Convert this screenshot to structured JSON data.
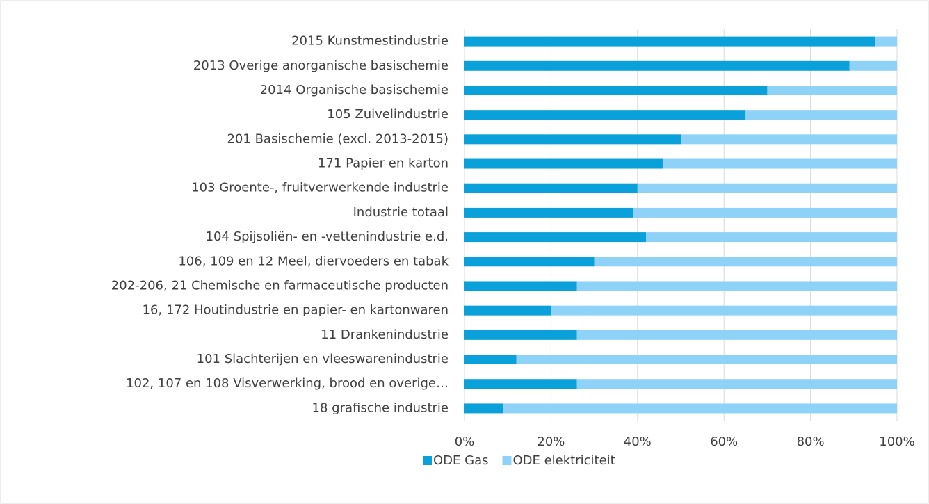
{
  "chart_data": {
    "type": "bar",
    "orientation": "horizontal",
    "stacked": true,
    "categories": [
      "2015 Kunstmestindustrie",
      "2013 Overige anorganische basischemie",
      "2014 Organische basischemie",
      "105 Zuivelindustrie",
      "201 Basischemie (excl. 2013-2015)",
      "171 Papier en karton",
      "103 Groente-, fruitverwerkende industrie",
      "Industrie totaal",
      "104 Spijsoliën- en -vettenindustrie e.d.",
      "106, 109 en 12 Meel, diervoeders en tabak",
      "202-206, 21 Chemische en farmaceutische producten",
      "16, 172 Houtindustrie en papier- en kartonwaren",
      "11 Drankenindustrie",
      "101 Slachterijen en vleeswarenindustrie",
      "102, 107 en 108 Visverwerking, brood en overige…",
      "18 grafische industrie"
    ],
    "series": [
      {
        "name": "ODE Gas",
        "color": "#0aa0d9",
        "values": [
          95,
          89,
          70,
          65,
          50,
          46,
          40,
          39,
          42,
          30,
          26,
          20,
          26,
          12,
          26,
          9
        ]
      },
      {
        "name": "ODE elektriciteit",
        "color": "#8fd2f8",
        "values": [
          5,
          11,
          30,
          35,
          50,
          54,
          60,
          61,
          58,
          70,
          74,
          80,
          74,
          88,
          74,
          91
        ]
      }
    ],
    "xlim": [
      0,
      100
    ],
    "xticks": [
      {
        "value": 0,
        "label": "0%"
      },
      {
        "value": 20,
        "label": "20%"
      },
      {
        "value": 40,
        "label": "40%"
      },
      {
        "value": 60,
        "label": "60%"
      },
      {
        "value": 80,
        "label": "80%"
      },
      {
        "value": 100,
        "label": "100%"
      }
    ],
    "grid": true,
    "legend": "bottom"
  }
}
